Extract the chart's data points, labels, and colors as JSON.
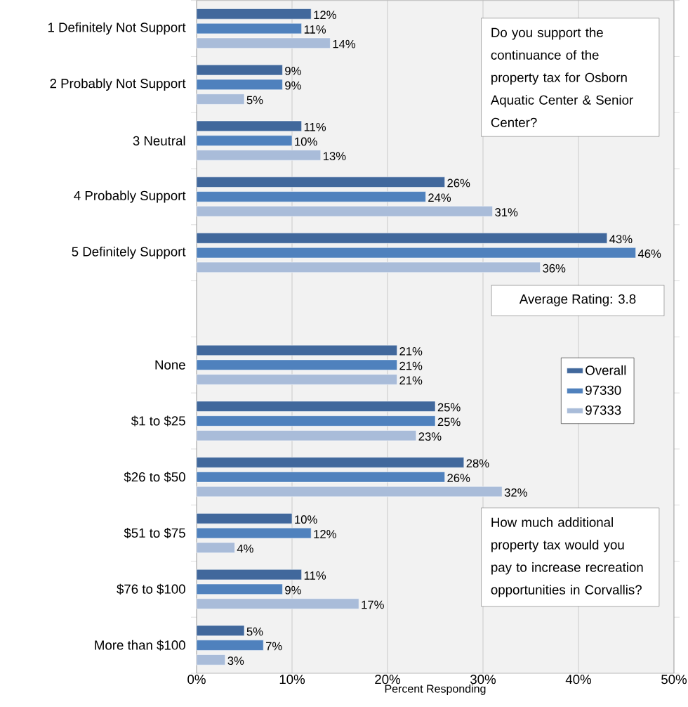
{
  "chart_data": {
    "type": "bar",
    "orientation": "horizontal",
    "categories": [
      "1 Definitely Not Support",
      "2 Probably Not Support",
      "3 Neutral",
      "4 Probably Support",
      "5 Definitely Support",
      null,
      "None",
      "$1 to $25",
      "$26 to $50",
      "$51 to $75",
      "$76 to $100",
      "More than $100"
    ],
    "series": [
      {
        "name": "Overall",
        "color": "#41689c",
        "values": [
          12,
          9,
          11,
          26,
          43,
          null,
          21,
          25,
          28,
          10,
          11,
          5
        ],
        "value_labels": [
          "12%",
          "9%",
          "11%",
          "26%",
          "43%",
          null,
          "21%",
          "25%",
          "28%",
          "10%",
          "11%",
          "5%"
        ]
      },
      {
        "name": "97330",
        "color": "#4f81bd",
        "values": [
          11,
          9,
          10,
          24,
          46,
          null,
          21,
          25,
          26,
          12,
          9,
          7
        ],
        "value_labels": [
          "11%",
          "9%",
          "10%",
          "24%",
          "46%",
          null,
          "21%",
          "25%",
          "26%",
          "12%",
          "9%",
          "7%"
        ]
      },
      {
        "name": "97333",
        "color": "#a9bcd9",
        "values": [
          14,
          5,
          13,
          31,
          36,
          null,
          21,
          23,
          32,
          4,
          17,
          3
        ],
        "value_labels": [
          "14%",
          "5%",
          "13%",
          "31%",
          "36%",
          null,
          "21%",
          "23%",
          "32%",
          "4%",
          "17%",
          "3%"
        ]
      }
    ],
    "xlim": [
      0,
      50
    ],
    "xticks": [
      {
        "value": 0,
        "label": "0%"
      },
      {
        "value": 10,
        "label": "10%"
      },
      {
        "value": 20,
        "label": "20%"
      },
      {
        "value": 30,
        "label": "30%"
      },
      {
        "value": 40,
        "label": "40%"
      },
      {
        "value": 50,
        "label": "50%"
      }
    ],
    "xlabel": "Percent Responding",
    "grid": "x",
    "legend": "right",
    "annotations": [
      "Do you support the continuance of the property tax for Osborn Aquatic Center & Senior Center?",
      "Average Rating: 3.8",
      "How much additional property tax would you pay to increase recreation opportunities in Corvallis?"
    ]
  }
}
